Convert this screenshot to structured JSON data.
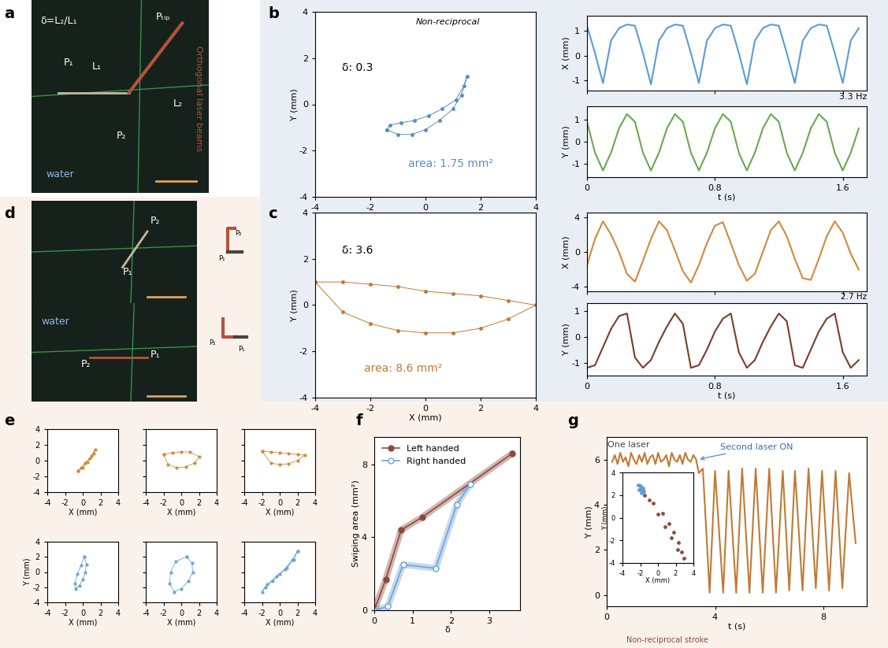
{
  "panel_labels": [
    "a",
    "b",
    "c",
    "d",
    "e",
    "f",
    "g"
  ],
  "photos": [
    {
      "labels": [
        "δ=L₂/L₁",
        "P₁",
        "L₁",
        "P₂",
        "L₂",
        "Pₜᵢₚ",
        "water"
      ]
    },
    {
      "labels": [
        "P₂",
        "P₁"
      ]
    },
    {
      "labels": [
        "water",
        "P₂",
        "P₁"
      ]
    }
  ],
  "side_label": "Orthogonal laser beams",
  "icons": [
    {
      "labels": [
        "P₂",
        "P₁"
      ]
    },
    {
      "labels": [
        "P₂",
        "P₁"
      ]
    }
  ],
  "chart_data": [
    {
      "type": "line",
      "xlabel": "X (mm)",
      "ylabel": "Y (mm)",
      "xlim": [
        -4,
        4
      ],
      "ylim": [
        -4,
        4
      ],
      "xticks": [
        -4,
        -2,
        0,
        2,
        4
      ],
      "yticks": [
        -4,
        -2,
        0,
        2,
        4
      ],
      "annotations": [
        "Non-reciprocal",
        "δ: 0.3",
        "area: 1.75 mm²"
      ],
      "series": [
        {
          "color": "#5b8fc0",
          "marker": "circle",
          "x": [
            -1.4,
            -1.0,
            -0.5,
            0,
            0.5,
            1.0,
            1.3,
            1.5,
            1.4,
            1.1,
            0.6,
            0.1,
            -0.4,
            -0.9,
            -1.3,
            -1.4
          ],
          "values": [
            -1.1,
            -1.3,
            -1.3,
            -1.1,
            -0.7,
            -0.2,
            0.4,
            1.2,
            0.8,
            0.2,
            -0.2,
            -0.5,
            -0.7,
            -0.8,
            -0.9,
            -1.1
          ]
        }
      ]
    },
    {
      "type": "line",
      "ylabel": "X (mm)",
      "xlim": [
        0,
        1.75
      ],
      "ylim": [
        -1.4,
        1.6
      ],
      "xticks": [
        0,
        0.8,
        1.6
      ],
      "yticks": [
        -1,
        0,
        1
      ],
      "tick_labels": "y",
      "annotations": [
        "3.3 Hz"
      ],
      "x": [
        0,
        0.05,
        0.1,
        0.15,
        0.2,
        0.25,
        0.3,
        0.35,
        0.4,
        0.45,
        0.5,
        0.55,
        0.6,
        0.65,
        0.7,
        0.75,
        0.8,
        0.85,
        0.9,
        0.95,
        1.0,
        1.05,
        1.1,
        1.15,
        1.2,
        1.25,
        1.3,
        1.35,
        1.4,
        1.45,
        1.5,
        1.55,
        1.6,
        1.65,
        1.7
      ],
      "series": [
        {
          "color": "#5b9bd5",
          "values": [
            1.2,
            0.1,
            -1.1,
            0.6,
            1.1,
            1.25,
            1.2,
            0.1,
            -1.15,
            0.6,
            1.1,
            1.25,
            1.2,
            0.1,
            -1.1,
            0.6,
            1.1,
            1.25,
            1.2,
            0.1,
            -1.15,
            0.6,
            1.1,
            1.25,
            1.2,
            0.1,
            -1.1,
            0.6,
            1.1,
            1.25,
            1.2,
            0.1,
            -1.1,
            0.6,
            1.1
          ]
        }
      ]
    },
    {
      "type": "line",
      "xlabel": "t (s)",
      "ylabel": "Y (mm)",
      "xlim": [
        0,
        1.75
      ],
      "ylim": [
        -1.6,
        1.6
      ],
      "xticks": [
        0,
        0.8,
        1.6
      ],
      "yticks": [
        -1,
        0,
        1
      ],
      "x": [
        0,
        0.05,
        0.1,
        0.15,
        0.2,
        0.25,
        0.3,
        0.35,
        0.4,
        0.45,
        0.5,
        0.55,
        0.6,
        0.65,
        0.7,
        0.75,
        0.8,
        0.85,
        0.9,
        0.95,
        1.0,
        1.05,
        1.1,
        1.15,
        1.2,
        1.25,
        1.3,
        1.35,
        1.4,
        1.45,
        1.5,
        1.55,
        1.6,
        1.65,
        1.7
      ],
      "series": [
        {
          "color": "#6aa84f",
          "values": [
            0.9,
            -0.5,
            -1.3,
            -0.5,
            0.6,
            1.25,
            0.9,
            -0.5,
            -1.3,
            -0.5,
            0.6,
            1.25,
            0.9,
            -0.5,
            -1.3,
            -0.5,
            0.6,
            1.25,
            0.9,
            -0.5,
            -1.3,
            -0.5,
            0.6,
            1.25,
            0.9,
            -0.5,
            -1.3,
            -0.5,
            0.6,
            1.25,
            0.9,
            -0.5,
            -1.3,
            -0.5,
            0.6
          ]
        }
      ]
    },
    {
      "type": "line",
      "xlabel": "X (mm)",
      "ylabel": "Y (mm)",
      "xlim": [
        -4,
        4
      ],
      "ylim": [
        -4,
        4
      ],
      "xticks": [
        -4,
        -2,
        0,
        2,
        4
      ],
      "yticks": [
        -4,
        -2,
        0,
        2,
        4
      ],
      "annotations": [
        "δ: 3.6",
        "area: 8.6 mm²"
      ],
      "series": [
        {
          "color": "#c07a35",
          "marker": "circle",
          "x": [
            -4,
            -3,
            -2,
            -1,
            0,
            1,
            2,
            3,
            4,
            3,
            2,
            1,
            0,
            -1,
            -2,
            -3,
            -4
          ],
          "values": [
            1.0,
            -0.3,
            -0.8,
            -1.1,
            -1.2,
            -1.2,
            -1.0,
            -0.6,
            0,
            0.2,
            0.4,
            0.5,
            0.6,
            0.8,
            0.9,
            1.0,
            1.0
          ]
        }
      ]
    },
    {
      "type": "line",
      "ylabel": "X (mm)",
      "xlim": [
        0,
        1.75
      ],
      "ylim": [
        -4.5,
        4.5
      ],
      "xticks": [
        0,
        0.8,
        1.6
      ],
      "yticks": [
        -4,
        0,
        4
      ],
      "tick_labels": "y",
      "annotations": [
        "2.7 Hz"
      ],
      "x": [
        0,
        0.05,
        0.1,
        0.15,
        0.2,
        0.25,
        0.3,
        0.35,
        0.4,
        0.45,
        0.5,
        0.55,
        0.6,
        0.65,
        0.7,
        0.75,
        0.8,
        0.85,
        0.9,
        0.95,
        1.0,
        1.05,
        1.1,
        1.15,
        1.2,
        1.25,
        1.3,
        1.35,
        1.4,
        1.45,
        1.5,
        1.55,
        1.6,
        1.65,
        1.7
      ],
      "series": [
        {
          "color": "#d08a3c",
          "values": [
            -1.5,
            1.5,
            3.5,
            2.0,
            0,
            -2.5,
            -3.4,
            -1.0,
            1.5,
            3.5,
            2.5,
            0.2,
            -2.2,
            -3.5,
            -1.5,
            1.0,
            3.0,
            3.4,
            1.0,
            -1.5,
            -3.3,
            -2.5,
            0,
            2.5,
            3.5,
            1.8,
            -0.8,
            -3.0,
            -3.2,
            -0.8,
            1.8,
            3.5,
            2.2,
            -0.2,
            -2.0
          ]
        }
      ]
    },
    {
      "type": "line",
      "xlabel": "t (s)",
      "ylabel": "Y (mm)",
      "xlim": [
        0,
        1.75
      ],
      "ylim": [
        -1.5,
        1.3
      ],
      "xticks": [
        0,
        0.8,
        1.6
      ],
      "yticks": [
        -1,
        0,
        1
      ],
      "x": [
        0,
        0.05,
        0.1,
        0.15,
        0.2,
        0.25,
        0.3,
        0.35,
        0.4,
        0.45,
        0.5,
        0.55,
        0.6,
        0.65,
        0.7,
        0.75,
        0.8,
        0.85,
        0.9,
        0.95,
        1.0,
        1.05,
        1.1,
        1.15,
        1.2,
        1.25,
        1.3,
        1.35,
        1.4,
        1.45,
        1.5,
        1.55,
        1.6,
        1.65,
        1.7
      ],
      "series": [
        {
          "color": "#7a3b2e",
          "values": [
            -1.2,
            -1.1,
            -0.4,
            0.3,
            0.8,
            0.9,
            -0.8,
            -1.2,
            -0.9,
            -0.2,
            0.4,
            0.9,
            0.5,
            -1.2,
            -1.1,
            -0.5,
            0.2,
            0.7,
            0.9,
            -0.6,
            -1.2,
            -0.9,
            -0.2,
            0.4,
            0.9,
            0.6,
            -1.1,
            -1.2,
            -0.5,
            0.2,
            0.7,
            0.9,
            -0.6,
            -1.2,
            -0.9
          ]
        }
      ]
    },
    {
      "type": "line",
      "xlabel": "X (mm)",
      "xlim": [
        -4,
        4
      ],
      "ylim": [
        -4,
        4
      ],
      "xticks": [
        -4,
        -2,
        0,
        2,
        4
      ],
      "yticks": [
        -4,
        -2,
        0,
        2,
        4
      ],
      "series": [
        {
          "color": "#d08a3c",
          "marker": "circle",
          "x": [
            -0.5,
            0,
            0.5,
            1.0,
            1.4,
            1.2,
            0.8,
            0.3,
            -0.2,
            -0.5
          ],
          "values": [
            -1.3,
            -0.9,
            -0.2,
            0.6,
            1.4,
            0.9,
            0.3,
            -0.3,
            -0.9,
            -1.3
          ]
        }
      ]
    },
    {
      "type": "line",
      "xlabel": "X (mm)",
      "xlim": [
        -4,
        4
      ],
      "ylim": [
        -4,
        4
      ],
      "xticks": [
        -4,
        -2,
        0,
        2,
        4
      ],
      "yticks": [
        -4,
        -2,
        0,
        2,
        4
      ],
      "tick_labels": "x",
      "series": [
        {
          "color": "#d08a3c",
          "marker": "circle",
          "x": [
            -2,
            -1,
            0,
            1,
            2,
            1.5,
            0.5,
            -0.5,
            -1.5,
            -2
          ],
          "values": [
            0.8,
            1.0,
            1.1,
            1.1,
            0.5,
            -0.3,
            -0.8,
            -0.9,
            -0.5,
            0.8
          ]
        }
      ]
    },
    {
      "type": "line",
      "xlabel": "X (mm)",
      "xlim": [
        -4,
        4
      ],
      "ylim": [
        -4,
        4
      ],
      "xticks": [
        -4,
        -2,
        0,
        2,
        4
      ],
      "yticks": [
        -4,
        -2,
        0,
        2,
        4
      ],
      "tick_labels": "x",
      "series": [
        {
          "color": "#d08a3c",
          "marker": "circle",
          "x": [
            -2,
            -1,
            0,
            1,
            2,
            2.8,
            2,
            1,
            0,
            -1,
            -2
          ],
          "values": [
            1.2,
            1.1,
            1.0,
            0.9,
            0.8,
            0.7,
            0.0,
            -0.4,
            -0.5,
            -0.3,
            1.2
          ]
        }
      ]
    },
    {
      "type": "line",
      "xlabel": "X (mm)",
      "ylabel": "Y (mm)",
      "xlim": [
        -4,
        4
      ],
      "ylim": [
        -4,
        4
      ],
      "xticks": [
        -4,
        -2,
        0,
        2,
        4
      ],
      "yticks": [
        -4,
        -2,
        0,
        2,
        4
      ],
      "series": [
        {
          "color": "#6fa3d6",
          "marker": "circle",
          "x": [
            0.2,
            0.4,
            0.3,
            0,
            -0.4,
            -0.8,
            -0.9,
            -0.6,
            -0.2,
            0.2
          ],
          "values": [
            2.0,
            1.0,
            0,
            -1,
            -1.8,
            -2.2,
            -1.5,
            -0.3,
            0.9,
            2.0
          ]
        }
      ]
    },
    {
      "type": "line",
      "xlabel": "X (mm)",
      "xlim": [
        -4,
        4
      ],
      "ylim": [
        -4,
        4
      ],
      "xticks": [
        -4,
        -2,
        0,
        2,
        4
      ],
      "yticks": [
        -4,
        -2,
        0,
        2,
        4
      ],
      "tick_labels": "x",
      "series": [
        {
          "color": "#6fa3d6",
          "marker": "circle",
          "x": [
            0.6,
            1.2,
            1.3,
            0.8,
            0,
            -0.8,
            -1.3,
            -1.2,
            -0.6,
            0.6
          ],
          "values": [
            2.0,
            1.2,
            0,
            -1.2,
            -2.2,
            -2.6,
            -1.5,
            0,
            1.4,
            2.0
          ]
        }
      ]
    },
    {
      "type": "line",
      "xlabel": "X (mm)",
      "xlim": [
        -4,
        4
      ],
      "ylim": [
        -4,
        4
      ],
      "xticks": [
        -4,
        -2,
        0,
        2,
        4
      ],
      "yticks": [
        -4,
        -2,
        0,
        2,
        4
      ],
      "tick_labels": "x",
      "series": [
        {
          "color": "#6fa3d6",
          "marker": "circle",
          "x": [
            2.0,
            1.6,
            0.8,
            0,
            -0.8,
            -1.6,
            -2.0,
            -1.4,
            -0.4,
            0.6,
            1.4,
            2.0
          ],
          "values": [
            2.8,
            1.6,
            0.6,
            -0.3,
            -1.2,
            -2.0,
            -2.6,
            -1.6,
            -0.6,
            0.4,
            1.6,
            2.8
          ]
        }
      ]
    },
    {
      "type": "line",
      "xlabel": "δ",
      "ylabel": "Swiping area (mm²)",
      "xlim": [
        0,
        3.8
      ],
      "ylim": [
        0,
        9.5
      ],
      "xticks": [
        0,
        1,
        2,
        3
      ],
      "yticks": [
        0,
        4,
        8
      ],
      "legend": "upper left",
      "series": [
        {
          "name": "Left handed",
          "color": "#8c4a3e",
          "marker": "circle",
          "x": [
            0,
            0.3,
            0.7,
            1.25,
            3.6
          ],
          "values": [
            0,
            1.7,
            4.4,
            5.1,
            8.6
          ]
        },
        {
          "name": "Right handed",
          "color": "#6fa3d6",
          "marker": "open_circle",
          "x": [
            0,
            0.35,
            0.75,
            1.6,
            2.15,
            2.5
          ],
          "values": [
            0,
            0.2,
            2.5,
            2.3,
            5.8,
            6.9
          ]
        }
      ]
    },
    {
      "type": "line",
      "xlabel": "t (s)",
      "ylabel": "Y (mm)",
      "xlim": [
        0,
        9.6
      ],
      "ylim": [
        -0.5,
        7.0
      ],
      "xticks": [
        0,
        4,
        8
      ],
      "yticks": [
        0,
        2,
        4,
        6
      ],
      "annotations": [
        "One laser",
        "Second laser ON"
      ],
      "series": [
        {
          "color": "#c07a35",
          "x": [
            0.2,
            0.3,
            0.4,
            0.5,
            0.6,
            0.7,
            0.8,
            0.9,
            1.0,
            1.1,
            1.2,
            1.3,
            1.4,
            1.5,
            1.6,
            1.7,
            1.8,
            1.9,
            2.0,
            2.1,
            2.2,
            2.3,
            2.4,
            2.5,
            2.6,
            2.7,
            2.8,
            2.9,
            3.0,
            3.1,
            3.2,
            3.3,
            3.4,
            3.55,
            3.8,
            4.0,
            4.3,
            4.5,
            4.78,
            5.0,
            5.27,
            5.5,
            5.76,
            6.0,
            6.25,
            6.5,
            6.74,
            6.95,
            7.23,
            7.45,
            7.72,
            7.95,
            8.21,
            8.45,
            8.7,
            8.95,
            9.19
          ],
          "values": [
            5.9,
            6.2,
            5.8,
            6.3,
            5.9,
            6.1,
            5.7,
            6.3,
            6.0,
            5.8,
            6.2,
            5.9,
            6.3,
            5.8,
            6.1,
            6.2,
            5.8,
            6.3,
            5.9,
            6.0,
            6.2,
            5.7,
            6.3,
            6.0,
            5.9,
            6.2,
            5.8,
            6.3,
            6.0,
            5.9,
            6.2,
            6.0,
            5.4,
            5.6,
            0.1,
            5.5,
            0.1,
            5.5,
            0.1,
            5.6,
            0.1,
            5.6,
            0.1,
            5.6,
            0.1,
            5.5,
            0.2,
            5.5,
            0.2,
            5.6,
            0.3,
            5.5,
            0.2,
            5.5,
            0.3,
            5.4,
            2.3
          ]
        }
      ],
      "inset": {
        "type": "scatter",
        "xlabel": "X (mm)",
        "ylabel": "Y (mm)",
        "xlim": [
          -4,
          4
        ],
        "ylim": [
          -4,
          4
        ],
        "xticks": [
          -4,
          -2,
          0,
          2,
          4
        ],
        "yticks": [
          -4,
          -2,
          0,
          2,
          4
        ],
        "annotations": [
          "Non-reciprocal stroke"
        ],
        "series": [
          {
            "color": "#5b9bd5",
            "marker": "circle",
            "x": [
              -2.0,
              -1.8,
              -2.1,
              -1.7,
              -1.9,
              -2.2,
              -1.6,
              -2.0
            ],
            "values": [
              2.8,
              2.4,
              2.5,
              2.6,
              2.2,
              2.9,
              2.3,
              2.6
            ]
          },
          {
            "color": "#8c4a3e",
            "marker": "circle",
            "x": [
              -1.5,
              -0.5,
              0.5,
              1.2,
              1.8,
              2.3,
              2.7,
              2.9,
              2.2,
              1.5,
              0.8,
              0,
              -1
            ],
            "values": [
              2.0,
              1.3,
              0.4,
              -0.5,
              -1.3,
              -2.2,
              -3.0,
              -3.6,
              -2.8,
              -1.8,
              -0.8,
              0.3,
              1.6
            ]
          }
        ]
      }
    }
  ]
}
